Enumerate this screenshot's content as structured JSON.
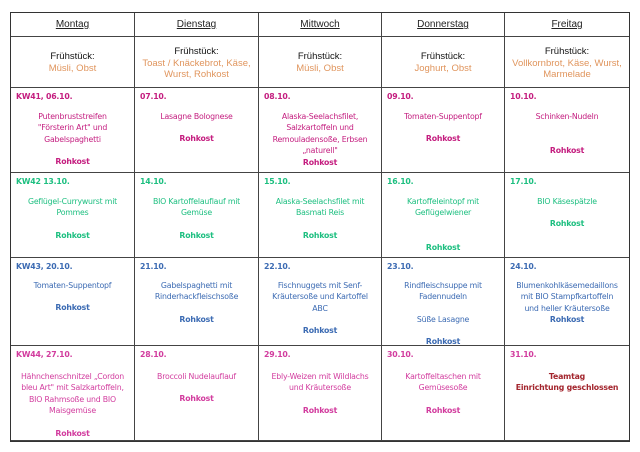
{
  "days": [
    "Montag",
    "Dienstag",
    "Mittwoch",
    "Donnerstag",
    "Freitag"
  ],
  "breakfast": [
    {
      "label": "Frühstück:",
      "items": [
        "Müsli, Obst"
      ]
    },
    {
      "label": "Frühstück:",
      "items": [
        "Toast / Knäckebrot, Käse,",
        "Wurst, Rohkost"
      ]
    },
    {
      "label": "Frühstück:",
      "items": [
        "Müsli, Obst"
      ]
    },
    {
      "label": "Frühstück:",
      "items": [
        "Joghurt, Obst"
      ]
    },
    {
      "label": "Frühstück:",
      "items": [
        "Vollkornbrot, Käse, Wurst,",
        "Marmelade"
      ]
    }
  ],
  "colors": {
    "breakfast": "#e0955d",
    "kw41": "#c41d7f",
    "kw42": "#1dbf80",
    "kw43": "#3c6bb3",
    "kw44": "#d23c9e",
    "closed": "#a3262e"
  },
  "weeks": [
    {
      "color": "#c41d7f",
      "cells": [
        {
          "date": "KW41, 06.10.",
          "meal": [
            "Putenbruststreifen",
            "\"Försterin Art\" und",
            "Gabelspaghetti"
          ],
          "rohkost": "Rohkost"
        },
        {
          "date": "07.10.",
          "meal": [
            "Lasagne Bolognese"
          ],
          "rohkost": "Rohkost"
        },
        {
          "date": "08.10.",
          "meal": [
            "Alaska-Seelachsfilet,",
            "Salzkartoffeln und",
            "Remouladensoße, Erbsen",
            "„naturell\""
          ],
          "rohkost": "Rohkost"
        },
        {
          "date": "09.10.",
          "meal": [
            "Tomaten-Suppentopf"
          ],
          "rohkost": "Rohkost"
        },
        {
          "date": "10.10.",
          "meal": [
            "Schinken-Nudeln"
          ],
          "rohkost": "Rohkost"
        }
      ]
    },
    {
      "color": "#1dbf80",
      "cells": [
        {
          "date": "KW42 13.10.",
          "meal": [
            "Geflügel-Currywurst mit",
            "Pommes"
          ],
          "rohkost": "Rohkost"
        },
        {
          "date": "14.10.",
          "meal": [
            "BIO Kartoffelauflauf mit",
            "Gemüse"
          ],
          "rohkost": "Rohkost"
        },
        {
          "date": "15.10.",
          "meal": [
            "Alaska-Seelachsfilet mit",
            "Basmati Reis"
          ],
          "rohkost": "Rohkost"
        },
        {
          "date": "16.10.",
          "meal": [
            "Kartoffeleintopf mit",
            "Geflügelwiener"
          ],
          "rohkost": "Rohkost"
        },
        {
          "date": "17.10.",
          "meal": [
            "BIO Käsespätzle"
          ],
          "rohkost": "Rohkost"
        }
      ]
    },
    {
      "color": "#3c6bb3",
      "cells": [
        {
          "date": "KW43, 20.10.",
          "meal": [
            "Tomaten-Suppentopf"
          ],
          "rohkost": "Rohkost"
        },
        {
          "date": "21.10.",
          "meal": [
            "Gabelspaghetti mit",
            "Rinderhackfleischsoße"
          ],
          "rohkost": "Rohkost"
        },
        {
          "date": "22.10.",
          "meal": [
            "Fischnuggets mit Senf-",
            "Kräutersoße und Kartoffel",
            "ABC"
          ],
          "rohkost": "Rohkost"
        },
        {
          "date": "23.10.",
          "meal": [
            "Rindfleischsuppe mit",
            "Fadennudeln"
          ],
          "extra": "Süße Lasagne",
          "rohkost": "Rohkost"
        },
        {
          "date": "24.10.",
          "meal": [
            "Blumenkohlkäsemedaillons",
            "mit BIO Stampfkartoffeln",
            "und heller Kräutersoße"
          ],
          "rohkost": "Rohkost"
        }
      ]
    },
    {
      "color": "#d23c9e",
      "cells": [
        {
          "date": "KW44, 27.10.",
          "meal": [
            "Hähnchenschnitzel „Cordon",
            "bleu Art\" mit Salzkartoffeln,",
            "BIO Rahmsoße und BIO",
            "Maisgemüse"
          ],
          "rohkost": "Rohkost"
        },
        {
          "date": "28.10.",
          "meal": [
            "Broccoli Nudelauflauf"
          ],
          "rohkost": "Rohkost"
        },
        {
          "date": "29.10.",
          "meal": [
            "Ebly-Weizen mit Wildlachs",
            "und Kräutersoße"
          ],
          "rohkost": "Rohkost"
        },
        {
          "date": "30.10.",
          "meal": [
            "Kartoffeltaschen mit",
            "Gemüsesoße"
          ],
          "rohkost": "Rohkost"
        },
        {
          "date": "31.10.",
          "meal": [
            "Teamtag",
            "Einrichtung geschlossen"
          ],
          "mealColor": "#a3262e"
        }
      ]
    }
  ]
}
